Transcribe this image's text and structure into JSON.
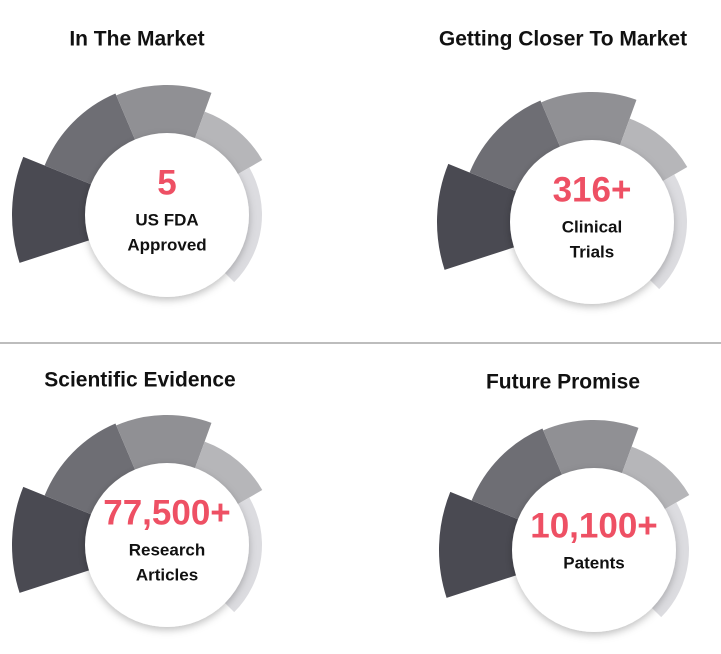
{
  "panels": [
    {
      "title": "In The Market",
      "stat": "5",
      "label_lines": [
        "US FDA",
        "Approved"
      ]
    },
    {
      "title": "Getting Closer To Market",
      "stat": "316+",
      "label_lines": [
        "Clinical",
        "Trials"
      ]
    },
    {
      "title": "Scientific Evidence",
      "stat": "77,500+",
      "label_lines": [
        "Research",
        "Articles"
      ]
    },
    {
      "title": "Future Promise",
      "stat": "10,100+",
      "label_lines": [
        "Patents"
      ]
    }
  ]
}
